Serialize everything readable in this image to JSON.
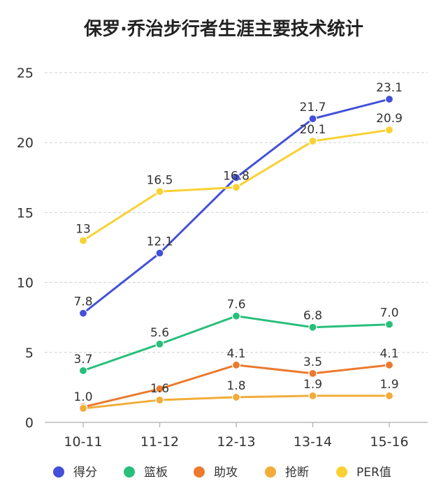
{
  "chart_data": {
    "type": "line",
    "title": "保罗·乔治步行者生涯主要技术统计",
    "xlabel": "",
    "ylabel": "",
    "categories": [
      "10-11",
      "11-12",
      "12-13",
      "13-14",
      "15-16"
    ],
    "ylim": [
      0,
      25
    ],
    "yticks": [
      0,
      5,
      10,
      15,
      20,
      25
    ],
    "grid": true,
    "legend_position": "bottom",
    "series": [
      {
        "name": "得分",
        "color": "#4350D9",
        "values": [
          7.8,
          12.1,
          17.5,
          21.7,
          23.1
        ],
        "labels": [
          "7.8",
          "12.1",
          "",
          "21.7",
          "23.1"
        ]
      },
      {
        "name": "篮板",
        "color": "#27BF7A",
        "values": [
          3.7,
          5.6,
          7.6,
          6.8,
          7.0
        ],
        "labels": [
          "3.7",
          "5.6",
          "7.6",
          "6.8",
          "7.0"
        ]
      },
      {
        "name": "助攻",
        "color": "#EB7A2D",
        "values": [
          1.1,
          2.4,
          4.1,
          3.5,
          4.1
        ],
        "labels": [
          "",
          "",
          "4.1",
          "3.5",
          "4.1"
        ]
      },
      {
        "name": "抢断",
        "color": "#F2AC3A",
        "values": [
          1.0,
          1.6,
          1.8,
          1.9,
          1.9
        ],
        "labels": [
          "1.0",
          "1.6",
          "1.8",
          "1.9",
          "1.9"
        ]
      },
      {
        "name": "PER值",
        "color": "#F9D132",
        "values": [
          13,
          16.5,
          16.8,
          20.1,
          20.9
        ],
        "labels": [
          "13",
          "16.5",
          "16.8",
          "20.1",
          "20.9"
        ]
      }
    ]
  }
}
